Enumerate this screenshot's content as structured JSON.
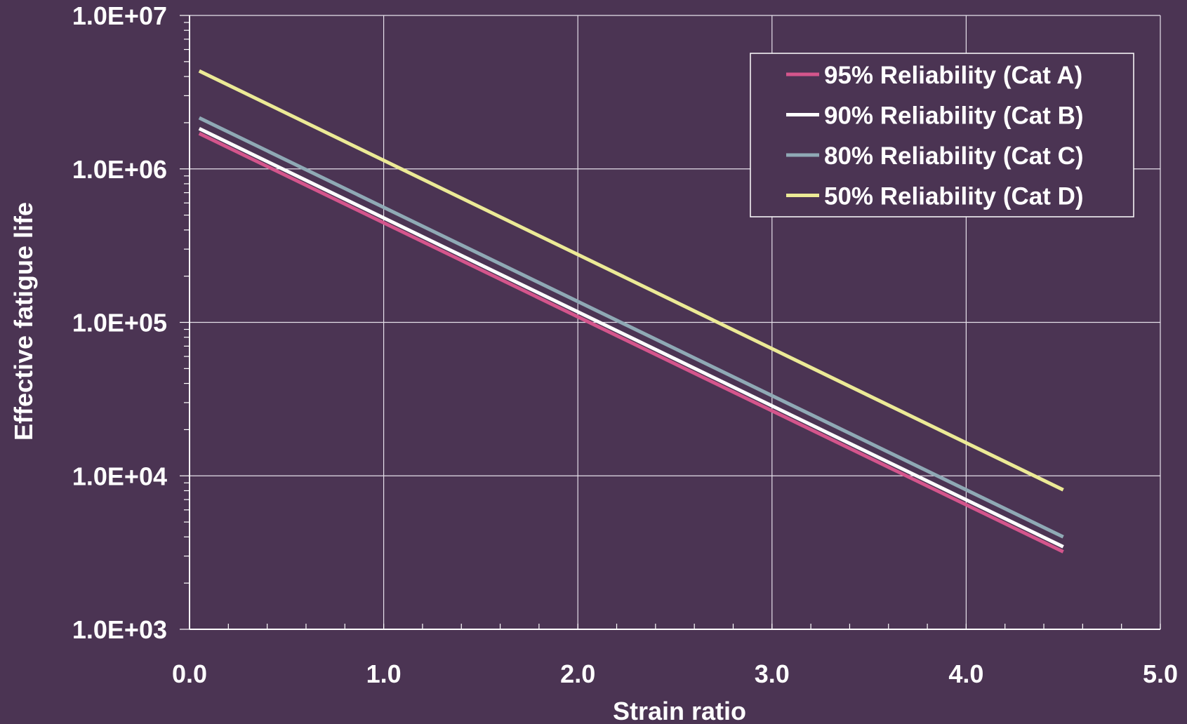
{
  "chart_data": {
    "type": "line",
    "xlabel": "Strain ratio",
    "ylabel": "Effective fatigue life",
    "xlim": [
      0,
      5
    ],
    "ylim": [
      1000,
      10000000
    ],
    "yscale": "log",
    "grid": true,
    "legend_position": "top-right",
    "x_ticks": [
      "0.0",
      "1.0",
      "2.0",
      "3.0",
      "4.0",
      "5.0"
    ],
    "y_ticks": [
      "1.0E+03",
      "1.0E+04",
      "1.0E+05",
      "1.0E+06",
      "1.0E+07"
    ],
    "background_color": "#4b3453",
    "series": [
      {
        "name": "95% Reliability (Cat A)",
        "color": "#d4558c",
        "x": [
          0.05,
          4.5
        ],
        "y": [
          1700000,
          3200
        ]
      },
      {
        "name": "90% Reliability (Cat B)",
        "color": "#ffffff",
        "x": [
          0.05,
          4.5
        ],
        "y": [
          1830000,
          3450
        ]
      },
      {
        "name": "80% Reliability (Cat C)",
        "color": "#8fa9b5",
        "x": [
          0.05,
          4.5
        ],
        "y": [
          2150000,
          4000
        ]
      },
      {
        "name": "50% Reliability (Cat D)",
        "color": "#ecea96",
        "x": [
          0.05,
          4.5
        ],
        "y": [
          4350000,
          8100
        ]
      }
    ]
  }
}
